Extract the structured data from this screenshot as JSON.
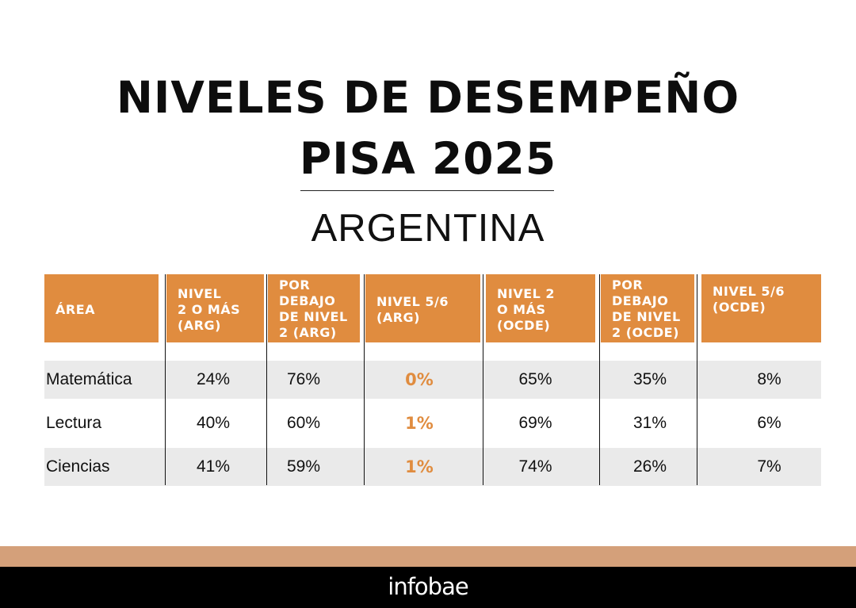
{
  "title_line1": "NIVELES DE DESEMPEÑO",
  "title_line2": "PISA 2025",
  "subtitle": "ARGENTINA",
  "brand": "infobae",
  "colors": {
    "accent": "#e08c3f",
    "row_band": "#eaeaea",
    "footer_strip": "#d4a07a",
    "footer": "#000000"
  },
  "chart_data": {
    "type": "table",
    "title": "NIVELES DE DESEMPEÑO PISA 2025",
    "subtitle": "ARGENTINA",
    "columns": [
      "ÁREA",
      "NIVEL\n2 O MÁS\n(ARG)",
      "POR\nDEBAJO\nDE NIVEL\n2 (ARG)",
      "NIVEL 5/6\n(ARG)",
      "NIVEL 2\nO MÁS\n(OCDE)",
      "POR\nDEBAJO\nDE NIVEL\n2 (OCDE)",
      "NIVEL 5/6\n(OCDE)"
    ],
    "rows": [
      [
        "Matemática",
        "24%",
        "76%",
        "0%",
        "65%",
        "35%",
        "8%"
      ],
      [
        "Lectura",
        "40%",
        "60%",
        "1%",
        "69%",
        "31%",
        "6%"
      ],
      [
        "Ciencias",
        "41%",
        "59%",
        "1%",
        "74%",
        "26%",
        "7%"
      ]
    ],
    "highlighted_column": 3
  }
}
